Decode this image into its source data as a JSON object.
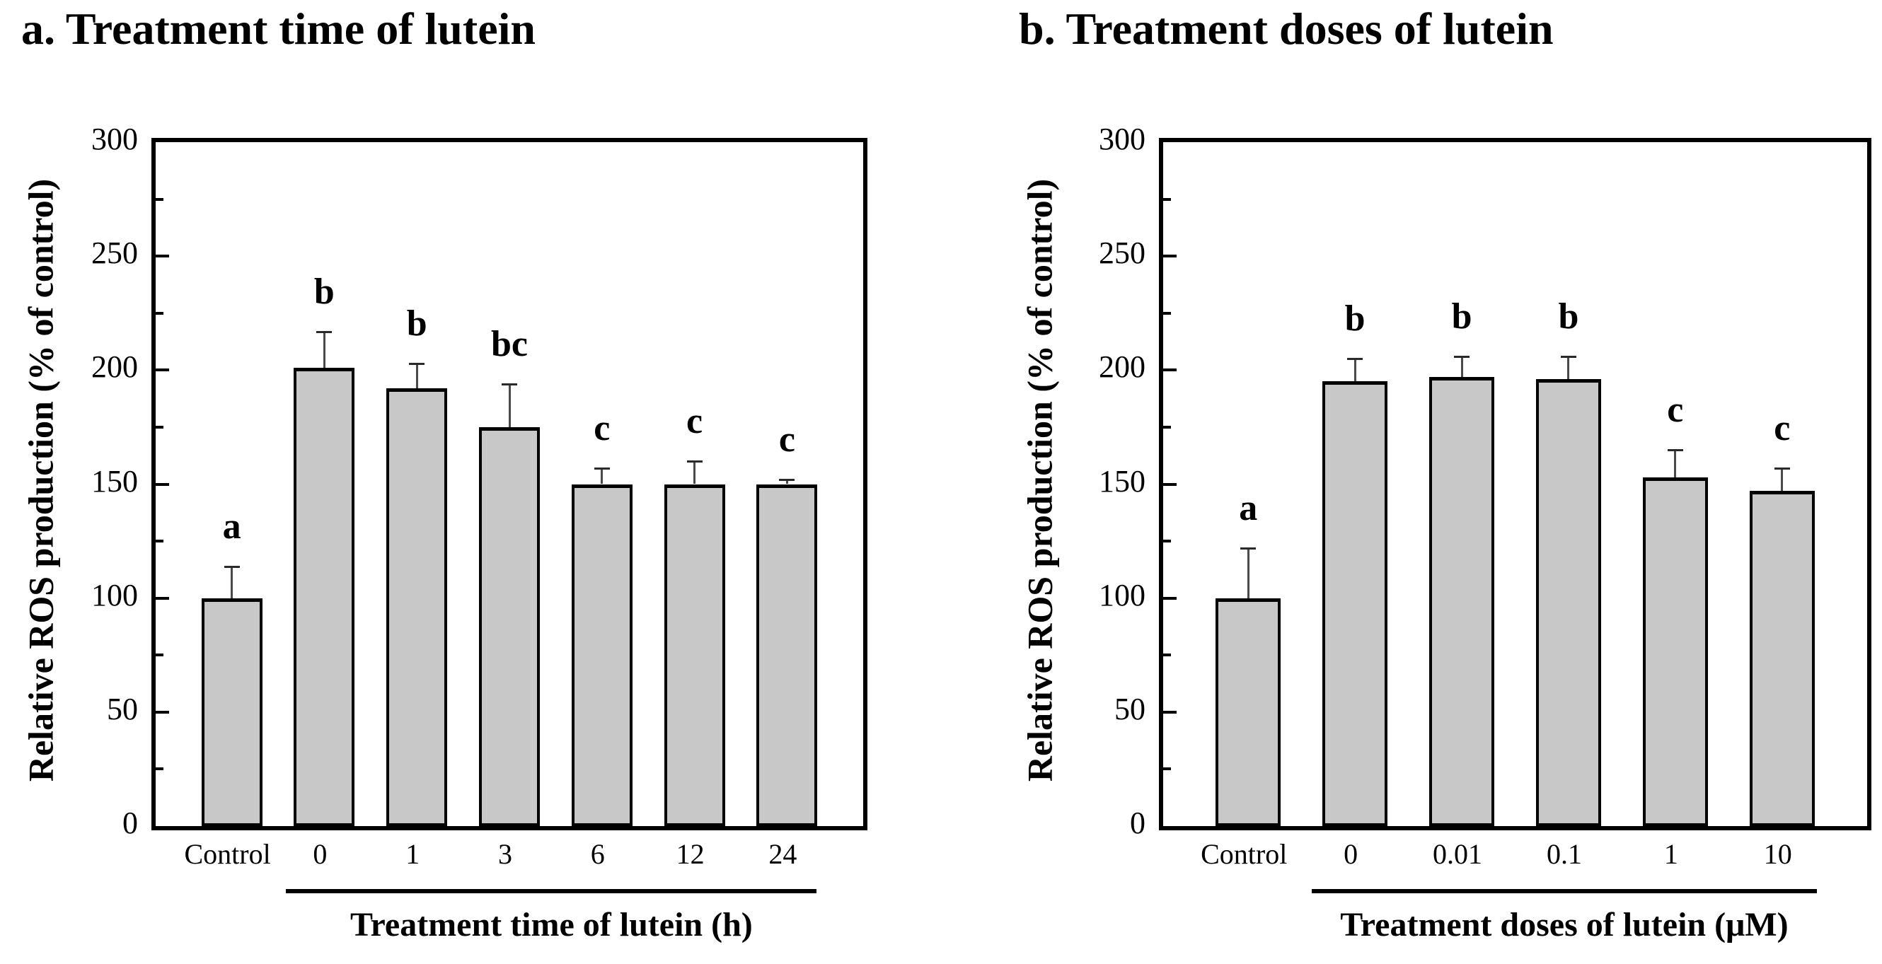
{
  "figure": {
    "background": "#ffffff",
    "text_color": "#000000",
    "bar_fill_color": "#c8c8c8",
    "bar_border_color": "#000000",
    "error_bar_color": "#4a4a4a"
  },
  "chart_data": [
    {
      "id": "a",
      "type": "bar",
      "title": "a. Treatment time of lutein",
      "ylabel": "Relative ROS production (% of control)",
      "xlabel": "Treatment time of lutein (h)",
      "ylim": [
        0,
        300
      ],
      "ytick_step": 50,
      "yminor_step": 25,
      "grid": false,
      "legend": "none",
      "yticks": [
        "0",
        "50",
        "100",
        "150",
        "200",
        "250",
        "300"
      ],
      "categories": [
        "Control",
        "0",
        "1",
        "3",
        "6",
        "12",
        "24"
      ],
      "values": [
        100,
        201,
        192,
        175,
        150,
        150,
        150
      ],
      "errors_plus": [
        14,
        16,
        11,
        19,
        7,
        10,
        2
      ],
      "sig_letters": [
        "a",
        "b",
        "b",
        "bc",
        "c",
        "c",
        "c"
      ],
      "bracket_covers_categories": [
        "0",
        "1",
        "3",
        "6",
        "12",
        "24"
      ]
    },
    {
      "id": "b",
      "type": "bar",
      "title": "b. Treatment doses of lutein",
      "ylabel": "Relative ROS production (% of control)",
      "xlabel": "Treatment doses of lutein (μM)",
      "ylim": [
        0,
        300
      ],
      "ytick_step": 50,
      "yminor_step": 25,
      "grid": false,
      "legend": "none",
      "yticks": [
        "0",
        "50",
        "100",
        "150",
        "200",
        "250",
        "300"
      ],
      "categories": [
        "Control",
        "0",
        "0.01",
        "0.1",
        "1",
        "10"
      ],
      "values": [
        100,
        195,
        197,
        196,
        153,
        147
      ],
      "errors_plus": [
        22,
        10,
        9,
        10,
        12,
        10
      ],
      "sig_letters": [
        "a",
        "b",
        "b",
        "b",
        "c",
        "c"
      ],
      "bracket_covers_categories": [
        "0",
        "0.01",
        "0.1",
        "1",
        "10"
      ]
    }
  ]
}
